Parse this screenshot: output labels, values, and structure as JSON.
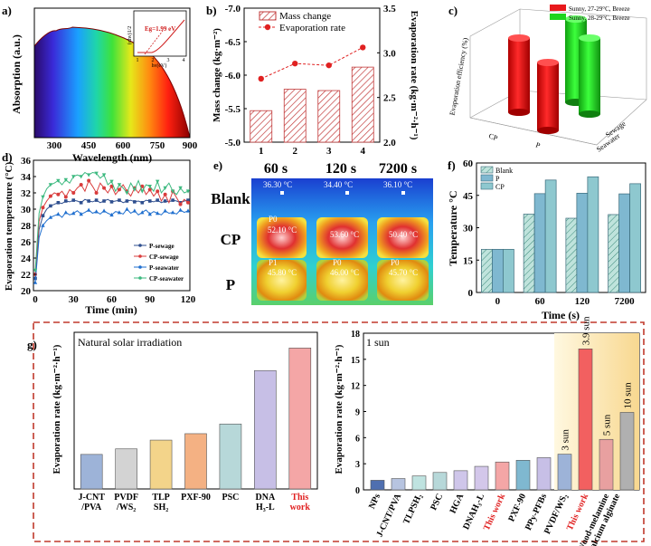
{
  "panels": {
    "a": {
      "label": "a)",
      "ylabel": "Absorption (a.u.)",
      "xlabel": "Wavelength (nm)",
      "xticks": [
        "300",
        "450",
        "600",
        "750",
        "900"
      ],
      "inset": {
        "ylabel": "(αhν)1/2",
        "xlabel": "hν(eV)",
        "eg": "Eg=1.99 eV",
        "xticks": [
          "1",
          "2",
          "3",
          "4"
        ]
      }
    },
    "b": {
      "label": "b)"
    },
    "c": {
      "label": "c)"
    },
    "d": {
      "label": "d)"
    },
    "e": {
      "label": "e)",
      "times": [
        "60 s",
        "120 s",
        "7200 s"
      ],
      "rows": [
        "Blank",
        "CP",
        "P"
      ],
      "temps": {
        "blank": [
          "36.30 °C",
          "34.40 °C",
          "36.10 °C"
        ],
        "cp": [
          "P0",
          "52.10 °C",
          "53.60 °C",
          "50.40 °C"
        ],
        "p": [
          "P1",
          "45.80 °C",
          "P0",
          "46.00 °C",
          "P0",
          "45.70 °C"
        ]
      }
    },
    "f": {
      "label": "f)"
    },
    "g": {
      "label": "g)",
      "left_title": "Natural solar irradiation",
      "right_title": "1 sun"
    }
  },
  "chart_data": [
    {
      "id": "b",
      "type": "bar+line",
      "categories": [
        "1",
        "2",
        "3",
        "4"
      ],
      "series": [
        {
          "name": "Mass change",
          "axis": "left",
          "values": [
            -5.47,
            -5.79,
            -5.77,
            -6.12
          ]
        },
        {
          "name": "Evaporation rate",
          "axis": "right",
          "values": [
            2.71,
            2.88,
            2.86,
            3.06
          ]
        }
      ],
      "ylabel_left": "Mass change (kg·m⁻²)",
      "ylim_left": [
        -5.0,
        -7.0
      ],
      "yticks_left": [
        "-7.0",
        "-6.5",
        "-6.0",
        "-5.5",
        "-5.0"
      ],
      "ylabel_right": "Evaporation rate (kg·m⁻²·h⁻¹)",
      "ylim_right": [
        2.0,
        3.5
      ],
      "yticks_right": [
        "3.5",
        "3.0",
        "2.5",
        "2.0"
      ]
    },
    {
      "id": "c",
      "type": "bar3d",
      "legend": [
        "Sunny, 27-29°C, Breeze",
        "Sunny, 28-29°C, Breeze"
      ],
      "ylabel": "Evaporation efficiency (%)",
      "axis_labels": [
        "Sewage",
        "Seawater",
        "CP",
        "P"
      ],
      "colors": [
        "#e8191c",
        "#1ed41e"
      ]
    },
    {
      "id": "d",
      "type": "line",
      "xlabel": "Time (min)",
      "ylabel": "Evaporation temperature (°C)",
      "xticks": [
        "0",
        "30",
        "60",
        "90",
        "120"
      ],
      "yticks": [
        "20",
        "22",
        "24",
        "26",
        "28",
        "30",
        "32",
        "34",
        "36"
      ],
      "ylim": [
        20,
        36
      ],
      "xlim": [
        0,
        120
      ],
      "x": [
        0,
        3,
        6,
        9,
        12,
        15,
        18,
        21,
        24,
        27,
        30,
        33,
        36,
        39,
        42,
        45,
        48,
        51,
        54,
        57,
        60,
        63,
        66,
        69,
        72,
        75,
        78,
        81,
        84,
        87,
        90,
        93,
        96,
        99,
        102,
        105,
        108,
        111,
        114,
        117,
        120
      ],
      "series": [
        {
          "name": "P-sewage",
          "color": "#2f4f8f",
          "values": [
            21.5,
            27.5,
            29.2,
            30.0,
            30.4,
            30.6,
            30.8,
            30.7,
            31.0,
            30.9,
            31.1,
            31.0,
            30.8,
            31.2,
            31.0,
            30.9,
            31.1,
            30.8,
            31.0,
            31.2,
            30.9,
            31.0,
            31.1,
            30.8,
            31.0,
            31.1,
            30.9,
            31.0,
            30.8,
            31.1,
            31.0,
            30.9,
            31.1,
            30.8,
            31.0,
            30.9,
            31.1,
            31.0,
            30.8,
            31.0,
            31.1
          ]
        },
        {
          "name": "CP-sewage",
          "color": "#d93c3c",
          "values": [
            22.0,
            28.5,
            30.2,
            31.0,
            31.6,
            32.0,
            31.8,
            32.2,
            31.5,
            32.4,
            32.0,
            32.6,
            33.0,
            32.2,
            33.5,
            32.8,
            32.0,
            33.2,
            32.6,
            32.0,
            32.8,
            31.8,
            32.4,
            33.0,
            32.2,
            31.6,
            32.6,
            32.0,
            32.8,
            31.8,
            32.4,
            31.6,
            32.2,
            31.0,
            31.8,
            30.8,
            32.2,
            31.4,
            30.6,
            31.2,
            30.8
          ]
        },
        {
          "name": "P-seawater",
          "color": "#1f6fcf",
          "values": [
            21.0,
            26.5,
            28.0,
            28.6,
            29.0,
            29.2,
            29.4,
            29.0,
            29.6,
            29.3,
            29.5,
            29.8,
            29.4,
            29.6,
            29.9,
            29.5,
            29.7,
            29.4,
            29.8,
            29.5,
            29.3,
            29.7,
            29.6,
            29.4,
            30.0,
            29.5,
            29.8,
            29.3,
            29.6,
            29.9,
            29.4,
            29.7,
            29.5,
            29.3,
            29.8,
            29.5,
            29.6,
            29.4,
            29.9,
            29.6,
            29.8
          ]
        },
        {
          "name": "CP-seawater",
          "color": "#3cb97f",
          "values": [
            22.5,
            29.5,
            31.5,
            32.5,
            33.0,
            33.2,
            33.5,
            33.0,
            33.6,
            33.2,
            34.0,
            34.2,
            34.0,
            34.5,
            34.2,
            34.5,
            34.4,
            33.8,
            34.2,
            33.0,
            33.4,
            32.2,
            33.0,
            32.6,
            32.0,
            33.2,
            32.4,
            33.5,
            32.2,
            33.0,
            32.8,
            32.2,
            33.4,
            32.0,
            32.6,
            33.2,
            32.2,
            31.8,
            32.6,
            32.0,
            32.2
          ]
        }
      ]
    },
    {
      "id": "f",
      "type": "bar",
      "categories": [
        "0",
        "60",
        "120",
        "7200"
      ],
      "series": [
        {
          "name": "Blank",
          "values": [
            20.0,
            36.3,
            34.4,
            36.1
          ]
        },
        {
          "name": "P",
          "values": [
            20.0,
            45.8,
            46.0,
            45.7
          ]
        },
        {
          "name": "CP",
          "values": [
            20.0,
            52.1,
            53.6,
            50.4
          ]
        }
      ],
      "xlabel": "Time (s)",
      "ylabel": "Temperature °C",
      "ylim": [
        0,
        60
      ],
      "yticks": [
        "0",
        "15",
        "30",
        "45",
        "60"
      ]
    },
    {
      "id": "g-left",
      "type": "bar",
      "title": "Natural solar irradiation",
      "categories": [
        "J-CNT/PVA",
        "PVDF/WS₂",
        "TLPSH₂",
        "PXF-90",
        "PSC",
        "DNAH₃-L",
        "This work"
      ],
      "category_lines": [
        [
          "J-CNT",
          "/PVA"
        ],
        [
          "PVDF",
          "/WS₂"
        ],
        [
          "TLP",
          "SH₂"
        ],
        [
          "PXF-90"
        ],
        [
          "PSC"
        ],
        [
          "DNA",
          "H₃-L"
        ],
        [
          "This",
          "work"
        ]
      ],
      "values": [
        0.75,
        0.87,
        1.06,
        1.2,
        1.41,
        2.57,
        3.06
      ],
      "colors": [
        "#9db3d8",
        "#d3d3d3",
        "#f3d48a",
        "#f4b183",
        "#b7d8d9",
        "#c7bfe6",
        "#f4a6a6"
      ],
      "ylabel": "Evaporation rate (kg·m⁻²·h⁻¹)"
    },
    {
      "id": "g-right",
      "type": "bar",
      "title": "1 sun",
      "categories": [
        "NPs",
        "J-CNT/PVA",
        "TLPSH₂",
        "PSC",
        "HGA",
        "DNAH₃-L",
        "This work",
        "PXF-90",
        "PPy-PFBs",
        "PVDF/WS₂",
        "This work",
        "Wood-melamine",
        "/calcium alginate"
      ],
      "values": [
        1.1,
        1.3,
        1.6,
        2.0,
        2.2,
        2.7,
        3.2,
        3.4,
        3.7,
        4.1,
        16.2,
        5.8,
        8.9
      ],
      "bar_labels": [
        "",
        "",
        "",
        "",
        "",
        "",
        "",
        "",
        "",
        "3 sun",
        "3.9 sun",
        "5 sun",
        "10 sun"
      ],
      "ylabel": "Evaporation rate (kg·m⁻²·h⁻¹)",
      "ylim": [
        0,
        18
      ],
      "yticks": [
        "0",
        "3",
        "6",
        "9",
        "12",
        "15",
        "18"
      ]
    }
  ]
}
